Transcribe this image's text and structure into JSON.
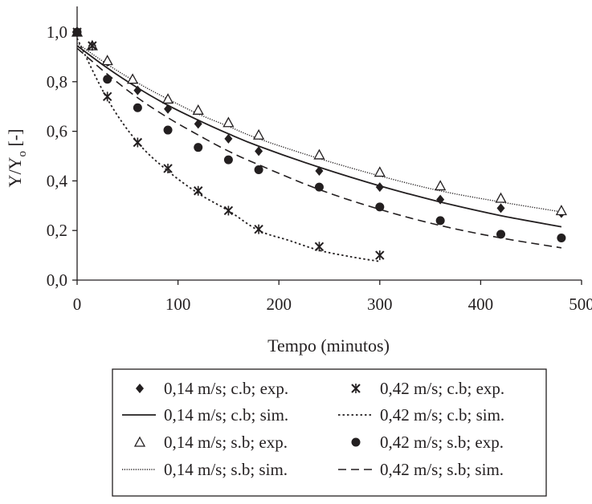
{
  "chart_data": {
    "type": "scatter",
    "title": "",
    "xlabel": "Tempo (minutos)",
    "ylabel_main": "Y/Y",
    "ylabel_sub": "o",
    "ylabel_unit": " [-]",
    "xlim": [
      0,
      500
    ],
    "ylim": [
      0,
      1.1
    ],
    "x_ticks": [
      0,
      100,
      200,
      300,
      400,
      500
    ],
    "x_tick_labels": [
      "0",
      "100",
      "200",
      "300",
      "400",
      "500"
    ],
    "y_ticks": [
      0,
      0.2,
      0.4,
      0.6,
      0.8,
      1.0
    ],
    "y_tick_labels": [
      "0,0",
      "0,2",
      "0,4",
      "0,6",
      "0,8",
      "1,0"
    ],
    "grid": false,
    "legend_placement": "bottom",
    "series": [
      {
        "name": "0,14 m/s; c.b; exp.",
        "kind": "points",
        "marker": "diamond",
        "x": [
          0,
          15,
          30,
          60,
          90,
          120,
          150,
          180,
          240,
          300,
          360,
          420,
          480
        ],
        "y": [
          1.0,
          0.945,
          0.88,
          0.765,
          0.69,
          0.63,
          0.57,
          0.52,
          0.44,
          0.375,
          0.325,
          0.29,
          0.27
        ]
      },
      {
        "name": "0,14 m/s; c.b; sim.",
        "kind": "line",
        "dash": "solid",
        "x": [
          0,
          30,
          60,
          90,
          120,
          150,
          180,
          240,
          300,
          360,
          420,
          480
        ],
        "y": [
          0.945,
          0.855,
          0.775,
          0.705,
          0.645,
          0.59,
          0.54,
          0.455,
          0.38,
          0.315,
          0.26,
          0.215
        ]
      },
      {
        "name": "0,14 m/s; s.b; exp.",
        "kind": "points",
        "marker": "triangle",
        "x": [
          0,
          15,
          30,
          55,
          90,
          120,
          150,
          180,
          240,
          300,
          360,
          420,
          480
        ],
        "y": [
          1.0,
          0.945,
          0.885,
          0.81,
          0.73,
          0.685,
          0.635,
          0.585,
          0.505,
          0.435,
          0.38,
          0.33,
          0.28
        ]
      },
      {
        "name": "0,14 m/s; s.b; sim.",
        "kind": "line",
        "dash": "dotted-fine",
        "x": [
          0,
          30,
          60,
          90,
          120,
          150,
          180,
          240,
          300,
          360,
          420,
          480
        ],
        "y": [
          0.955,
          0.87,
          0.795,
          0.73,
          0.67,
          0.62,
          0.57,
          0.49,
          0.42,
          0.36,
          0.315,
          0.275
        ]
      },
      {
        "name": "0,42 m/s; c.b; exp.",
        "kind": "points",
        "marker": "asterisk",
        "x": [
          0,
          15,
          30,
          60,
          90,
          120,
          150,
          180,
          240,
          300
        ],
        "y": [
          1.0,
          0.945,
          0.74,
          0.555,
          0.45,
          0.36,
          0.28,
          0.205,
          0.135,
          0.1
        ]
      },
      {
        "name": "0,42 m/s; c.b; sim.",
        "kind": "line",
        "dash": "dotted",
        "x": [
          0,
          30,
          60,
          90,
          120,
          150,
          180,
          210,
          240,
          270,
          300
        ],
        "y": [
          0.975,
          0.73,
          0.555,
          0.44,
          0.35,
          0.28,
          0.2,
          0.16,
          0.12,
          0.095,
          0.075
        ]
      },
      {
        "name": "0,42 m/s; s.b; exp.",
        "kind": "points",
        "marker": "circle",
        "x": [
          0,
          30,
          60,
          90,
          120,
          150,
          180,
          240,
          300,
          360,
          420,
          480
        ],
        "y": [
          1.0,
          0.81,
          0.695,
          0.605,
          0.535,
          0.485,
          0.445,
          0.375,
          0.295,
          0.24,
          0.185,
          0.17
        ]
      },
      {
        "name": "0,42 m/s; s.b; sim.",
        "kind": "line",
        "dash": "dashed",
        "x": [
          0,
          30,
          60,
          90,
          120,
          150,
          180,
          240,
          300,
          360,
          420,
          480
        ],
        "y": [
          0.935,
          0.83,
          0.735,
          0.655,
          0.585,
          0.52,
          0.465,
          0.365,
          0.285,
          0.22,
          0.17,
          0.13
        ]
      }
    ],
    "legend_order": [
      0,
      4,
      1,
      5,
      2,
      6,
      3,
      7
    ]
  }
}
